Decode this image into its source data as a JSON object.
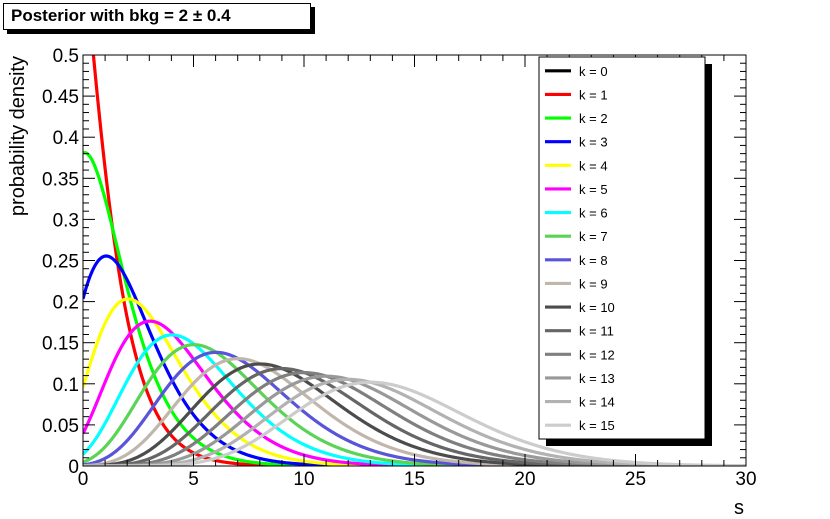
{
  "title": "Posterior with bkg = 2 ± 0.4",
  "chart_data": {
    "type": "line",
    "title": "Posterior with bkg = 2 ± 0.4",
    "xlabel": "s",
    "ylabel": "probability density",
    "xlim": [
      0,
      30
    ],
    "ylim": [
      0,
      0.5
    ],
    "x_ticks": [
      "0",
      "5",
      "10",
      "15",
      "20",
      "25",
      "30"
    ],
    "y_ticks": [
      "0",
      "0.05",
      "0.1",
      "0.15",
      "0.2",
      "0.25",
      "0.3",
      "0.35",
      "0.4",
      "0.45",
      "0.5"
    ],
    "grid": false,
    "legend_position": "top-right",
    "background": {
      "mean": 2,
      "sigma": 0.4
    },
    "series": [
      {
        "name": "k = 0",
        "k": 0,
        "color": "#000000"
      },
      {
        "name": "k = 1",
        "k": 1,
        "color": "#ff0000"
      },
      {
        "name": "k = 2",
        "k": 2,
        "color": "#00ff00"
      },
      {
        "name": "k = 3",
        "k": 3,
        "color": "#0000ff"
      },
      {
        "name": "k = 4",
        "k": 4,
        "color": "#ffff00"
      },
      {
        "name": "k = 5",
        "k": 5,
        "color": "#ff00ff"
      },
      {
        "name": "k = 6",
        "k": 6,
        "color": "#00ffff"
      },
      {
        "name": "k = 7",
        "k": 7,
        "color": "#59d454"
      },
      {
        "name": "k = 8",
        "k": 8,
        "color": "#5954d8"
      },
      {
        "name": "k = 9",
        "k": 9,
        "color": "#c0b6ac"
      },
      {
        "name": "k = 10",
        "k": 10,
        "color": "#4c4c4c"
      },
      {
        "name": "k = 11",
        "k": 11,
        "color": "#666666"
      },
      {
        "name": "k = 12",
        "k": 12,
        "color": "#7f7f7f"
      },
      {
        "name": "k = 13",
        "k": 13,
        "color": "#999999"
      },
      {
        "name": "k = 14",
        "k": 14,
        "color": "#b2b2b2"
      },
      {
        "name": "k = 15",
        "k": 15,
        "color": "#cccccc"
      }
    ]
  }
}
